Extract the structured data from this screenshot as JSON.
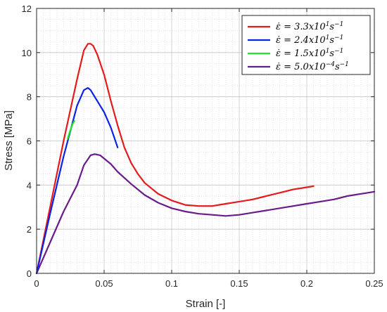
{
  "chart_data": {
    "type": "line",
    "xlabel": "Strain [-]",
    "ylabel": "Stress [MPa]",
    "xlim": [
      0,
      0.25
    ],
    "ylim": [
      0,
      12
    ],
    "xticks": [
      0,
      0.05,
      0.1,
      0.15,
      0.2,
      0.25
    ],
    "xtick_labels": [
      "0",
      "0.05",
      "0.1",
      "0.15",
      "0.2",
      "0.25"
    ],
    "yticks": [
      0,
      2,
      4,
      6,
      8,
      10,
      12
    ],
    "ytick_labels": [
      "0",
      "2",
      "4",
      "6",
      "8",
      "10",
      "12"
    ],
    "grid": "major and minor",
    "legend_position": "top-right",
    "series": [
      {
        "name": "ε̇ = 3.3x10¹s⁻¹",
        "legend": {
          "prefix": "ε̇ = 3.3",
          "mid": "x10",
          "exp1": "1",
          "base": "s",
          "exp2": "−1"
        },
        "color": "#e41a1c",
        "x": [
          0,
          0.01,
          0.02,
          0.03,
          0.035,
          0.038,
          0.04,
          0.042,
          0.045,
          0.05,
          0.055,
          0.06,
          0.065,
          0.07,
          0.075,
          0.08,
          0.09,
          0.1,
          0.11,
          0.12,
          0.13,
          0.14,
          0.15,
          0.16,
          0.17,
          0.18,
          0.19,
          0.2,
          0.205
        ],
        "y": [
          0,
          3.0,
          6.0,
          8.8,
          10.1,
          10.4,
          10.4,
          10.3,
          9.9,
          9.0,
          7.8,
          6.7,
          5.7,
          5.0,
          4.5,
          4.1,
          3.6,
          3.3,
          3.1,
          3.05,
          3.05,
          3.15,
          3.25,
          3.35,
          3.5,
          3.65,
          3.8,
          3.9,
          3.95
        ]
      },
      {
        "name": "ε̇ = 2.4x10¹s⁻¹",
        "legend": {
          "prefix": "ε̇ = 2.4",
          "mid": "x10",
          "exp1": "1",
          "base": "s",
          "exp2": "−1"
        },
        "color": "#0a23e6",
        "x": [
          0,
          0.01,
          0.02,
          0.03,
          0.035,
          0.038,
          0.04,
          0.042,
          0.045,
          0.05,
          0.055,
          0.06
        ],
        "y": [
          0,
          2.7,
          5.3,
          7.6,
          8.3,
          8.4,
          8.3,
          8.1,
          7.8,
          7.3,
          6.6,
          5.7
        ]
      },
      {
        "name": "ε̇ = 1.5x10¹s⁻¹",
        "legend": {
          "prefix": "ε̇ = 1.5",
          "mid": "x10",
          "exp1": "1",
          "base": "s",
          "exp2": "−1"
        },
        "color": "#22e622",
        "x": [
          0.023,
          0.025,
          0.027,
          0.028
        ],
        "y": [
          6.1,
          6.5,
          6.8,
          6.9
        ]
      },
      {
        "name": "ε̇ = 5.0x10⁻⁴s⁻¹",
        "legend": {
          "prefix": "ε̇ = 5.0",
          "mid": "x10",
          "exp1": "−4",
          "base": "s",
          "exp2": "−1"
        },
        "color": "#6a1b8a",
        "x": [
          0,
          0.01,
          0.02,
          0.03,
          0.035,
          0.04,
          0.043,
          0.047,
          0.05,
          0.055,
          0.06,
          0.07,
          0.08,
          0.09,
          0.1,
          0.11,
          0.12,
          0.13,
          0.14,
          0.15,
          0.16,
          0.17,
          0.18,
          0.19,
          0.2,
          0.21,
          0.22,
          0.23,
          0.24,
          0.25
        ],
        "y": [
          0,
          1.4,
          2.8,
          4.0,
          4.9,
          5.35,
          5.4,
          5.35,
          5.2,
          4.95,
          4.6,
          4.05,
          3.55,
          3.2,
          2.95,
          2.8,
          2.7,
          2.65,
          2.6,
          2.65,
          2.75,
          2.85,
          2.95,
          3.05,
          3.15,
          3.25,
          3.35,
          3.5,
          3.6,
          3.7
        ]
      }
    ]
  }
}
